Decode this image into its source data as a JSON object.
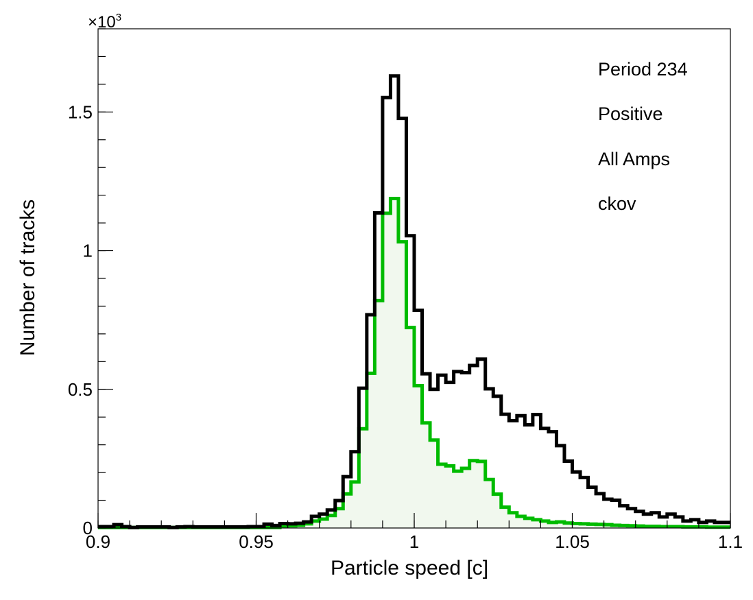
{
  "chart_data": {
    "type": "histogram",
    "xlabel": "Particle speed [c]",
    "ylabel": "Number of tracks",
    "y_multiplier": "×10",
    "y_multiplier_exp": "3",
    "xlim": [
      0.9,
      1.1
    ],
    "ylim": [
      0,
      1.8
    ],
    "x_ticks": [
      {
        "value": 0.9,
        "label": "0.9"
      },
      {
        "value": 0.95,
        "label": "0.95"
      },
      {
        "value": 1.0,
        "label": "1"
      },
      {
        "value": 1.05,
        "label": "1.05"
      },
      {
        "value": 1.1,
        "label": "1.1"
      }
    ],
    "y_ticks": [
      {
        "value": 0,
        "label": "0"
      },
      {
        "value": 0.5,
        "label": "0.5"
      },
      {
        "value": 1.0,
        "label": "1"
      },
      {
        "value": 1.5,
        "label": "1.5"
      }
    ],
    "bin_edges_start": 0.9,
    "bin_width": 0.0025,
    "legend": [
      "Period 234",
      "Positive",
      "All Amps",
      "ckov"
    ],
    "series": [
      {
        "color": "#000000",
        "fill": "none",
        "values": [
          0.005,
          0.005,
          0.012,
          0.005,
          0.002,
          0.004,
          0.004,
          0.004,
          0.004,
          0.002,
          0.004,
          0.005,
          0.004,
          0.004,
          0.004,
          0.004,
          0.004,
          0.004,
          0.004,
          0.005,
          0.005,
          0.014,
          0.009,
          0.016,
          0.015,
          0.017,
          0.022,
          0.042,
          0.05,
          0.065,
          0.099,
          0.185,
          0.275,
          0.504,
          0.769,
          1.136,
          1.552,
          1.63,
          1.477,
          1.054,
          0.785,
          0.556,
          0.5,
          0.551,
          0.525,
          0.564,
          0.56,
          0.586,
          0.609,
          0.502,
          0.475,
          0.41,
          0.387,
          0.405,
          0.372,
          0.409,
          0.359,
          0.347,
          0.297,
          0.241,
          0.202,
          0.182,
          0.147,
          0.124,
          0.104,
          0.1,
          0.08,
          0.07,
          0.06,
          0.05,
          0.055,
          0.04,
          0.05,
          0.04,
          0.025,
          0.03,
          0.02,
          0.025,
          0.02,
          0.02
        ]
      },
      {
        "color": "#00bb00",
        "fill": "#f1f8ee",
        "values": [
          0.002,
          0.002,
          0.002,
          0.002,
          0.002,
          0.002,
          0.002,
          0.002,
          0.002,
          0.002,
          0.002,
          0.002,
          0.002,
          0.002,
          0.002,
          0.002,
          0.002,
          0.002,
          0.002,
          0.002,
          0.002,
          0.002,
          0.002,
          0.005,
          0.008,
          0.01,
          0.015,
          0.025,
          0.032,
          0.045,
          0.07,
          0.123,
          0.166,
          0.358,
          0.558,
          0.82,
          1.135,
          1.188,
          1.032,
          0.723,
          0.513,
          0.379,
          0.317,
          0.23,
          0.224,
          0.205,
          0.215,
          0.243,
          0.24,
          0.175,
          0.122,
          0.075,
          0.055,
          0.042,
          0.035,
          0.03,
          0.025,
          0.02,
          0.022,
          0.018,
          0.016,
          0.015,
          0.014,
          0.013,
          0.012,
          0.01,
          0.009,
          0.008,
          0.007,
          0.006,
          0.006,
          0.005,
          0.005,
          0.005,
          0.004,
          0.004,
          0.004,
          0.003,
          0.003,
          0.003
        ]
      }
    ]
  }
}
